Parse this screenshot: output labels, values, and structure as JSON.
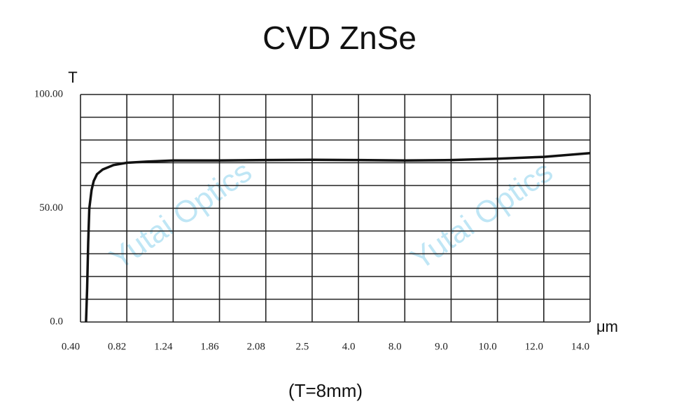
{
  "chart_data": {
    "type": "line",
    "title": "CVD   ZnSe",
    "subtitle": "(T=8mm)",
    "y_label": "T",
    "x_label": "μm",
    "watermark": "Yutai Optics",
    "x": [
      0.45,
      0.46,
      0.47,
      0.48,
      0.5,
      0.52,
      0.55,
      0.6,
      0.7,
      0.82,
      1.0,
      1.24,
      1.86,
      2.08,
      2.5,
      4.0,
      8.0,
      9.0,
      10.0,
      12.0,
      14.0
    ],
    "series": [
      {
        "name": "T",
        "color": "#111111",
        "values": [
          0,
          15,
          35,
          50,
          58,
          62,
          65,
          67,
          69,
          70,
          70.5,
          71,
          71,
          71.2,
          71.3,
          71.2,
          71,
          71.2,
          71.8,
          72.6,
          74.2
        ]
      }
    ],
    "xlim": [
      0.4,
      14.0
    ],
    "xticks": [
      {
        "value": 0.4,
        "label": "0.40"
      },
      {
        "value": 0.82,
        "label": "0.82"
      },
      {
        "value": 1.24,
        "label": "1.24"
      },
      {
        "value": 1.86,
        "label": "1.86"
      },
      {
        "value": 2.08,
        "label": "2.08"
      },
      2.5,
      {
        "value": 4,
        "label": "4.0"
      },
      {
        "value": 8,
        "label": "8.0"
      },
      {
        "value": 9,
        "label": "9.0"
      },
      {
        "value": 10,
        "label": "10.0"
      },
      {
        "value": 12,
        "label": "12.0"
      },
      {
        "value": 14,
        "label": "14.0"
      }
    ],
    "ylim": [
      0,
      100
    ],
    "yticks": [
      {
        "value": 0,
        "label": "0.0"
      },
      {
        "value": 50,
        "label": "50.00"
      },
      {
        "value": 100,
        "label": "100.00"
      }
    ],
    "y_gridlines": [
      0,
      10,
      20,
      30,
      40,
      50,
      60,
      70,
      80,
      90,
      100
    ],
    "grid": true
  }
}
